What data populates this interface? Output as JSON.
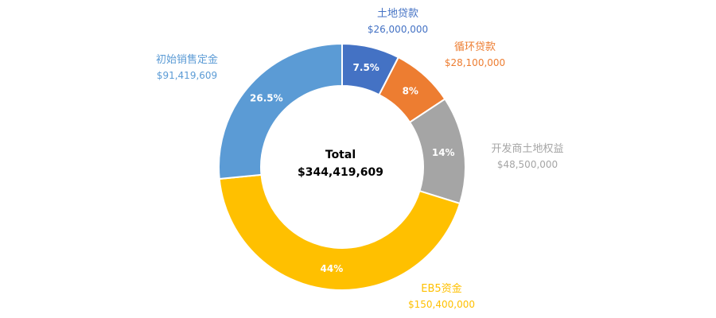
{
  "chart_data": {
    "type": "pie",
    "donut": true,
    "center": {
      "title": "Total",
      "value": "$344,419,609"
    },
    "slices": [
      {
        "label": "土地贷款",
        "amount": 26000000,
        "amount_text": "$26,000,000",
        "percent": 7.5,
        "percent_text": "7.5%",
        "color": "#4472C4"
      },
      {
        "label": "循环贷款",
        "amount": 28100000,
        "amount_text": "$28,100,000",
        "percent": 8,
        "percent_text": "8%",
        "color": "#ED7D31"
      },
      {
        "label": "开发商土地权益",
        "amount": 48500000,
        "amount_text": "$48,500,000",
        "percent": 14,
        "percent_text": "14%",
        "color": "#A5A5A5"
      },
      {
        "label": "EB5资金",
        "amount": 150400000,
        "amount_text": "$150,400,000",
        "percent": 44,
        "percent_text": "44%",
        "color": "#FFC000"
      },
      {
        "label": "初始销售定金",
        "amount": 91419609,
        "amount_text": "$91,419,609",
        "percent": 26.5,
        "percent_text": "26.5%",
        "color": "#5B9BD5"
      }
    ]
  }
}
